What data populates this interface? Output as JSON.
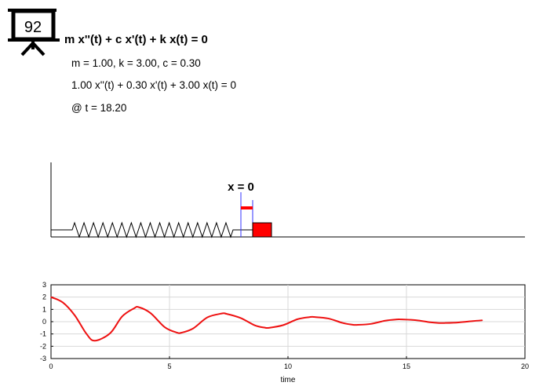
{
  "logo": {
    "number": "92"
  },
  "header": {
    "equation_title": "m x''(t) + c x'(t) + k x(t) = 0",
    "params": "m = 1.00, k = 3.00, c = 0.30",
    "equation": "1.00 x''(t) + 0.30 x'(t) + 3.00 x(t) = 0",
    "time_readout": "@ t = 18.20"
  },
  "animation": {
    "equilibrium_label": "x = 0",
    "current_displacement": 0.11,
    "mass_color": "#ff0000",
    "marker_color": "#3333ff"
  },
  "chart_data": {
    "type": "line",
    "xlabel": "time",
    "ylabel": "",
    "xlim": [
      0,
      20
    ],
    "ylim": [
      -3,
      3
    ],
    "xticks": [
      "0",
      "5",
      "10",
      "15",
      "20"
    ],
    "yticks": [
      "3",
      "2",
      "1",
      "0",
      "-1",
      "-2",
      "-3"
    ],
    "grid": true,
    "line_color": "#ee1111",
    "x": [
      0.0,
      0.5,
      1.0,
      1.5,
      1.85,
      2.5,
      3.0,
      3.5,
      3.7,
      4.2,
      4.8,
      5.3,
      5.5,
      6.0,
      6.6,
      7.2,
      7.4,
      8.0,
      8.6,
      9.0,
      9.2,
      9.8,
      10.4,
      10.9,
      11.1,
      11.7,
      12.3,
      12.7,
      12.9,
      13.5,
      14.1,
      14.6,
      14.8,
      15.4,
      16.0,
      16.4,
      16.6,
      17.2,
      17.8,
      18.2
    ],
    "y": [
      2.0,
      1.56,
      0.52,
      -1.0,
      -1.55,
      -0.93,
      0.42,
      1.08,
      1.18,
      0.7,
      -0.45,
      -0.88,
      -0.9,
      -0.55,
      0.35,
      0.66,
      0.64,
      0.3,
      -0.3,
      -0.48,
      -0.5,
      -0.28,
      0.2,
      0.37,
      0.38,
      0.26,
      -0.1,
      -0.24,
      -0.26,
      -0.18,
      0.08,
      0.18,
      0.18,
      0.12,
      -0.05,
      -0.11,
      -0.11,
      -0.06,
      0.05,
      0.11
    ]
  }
}
